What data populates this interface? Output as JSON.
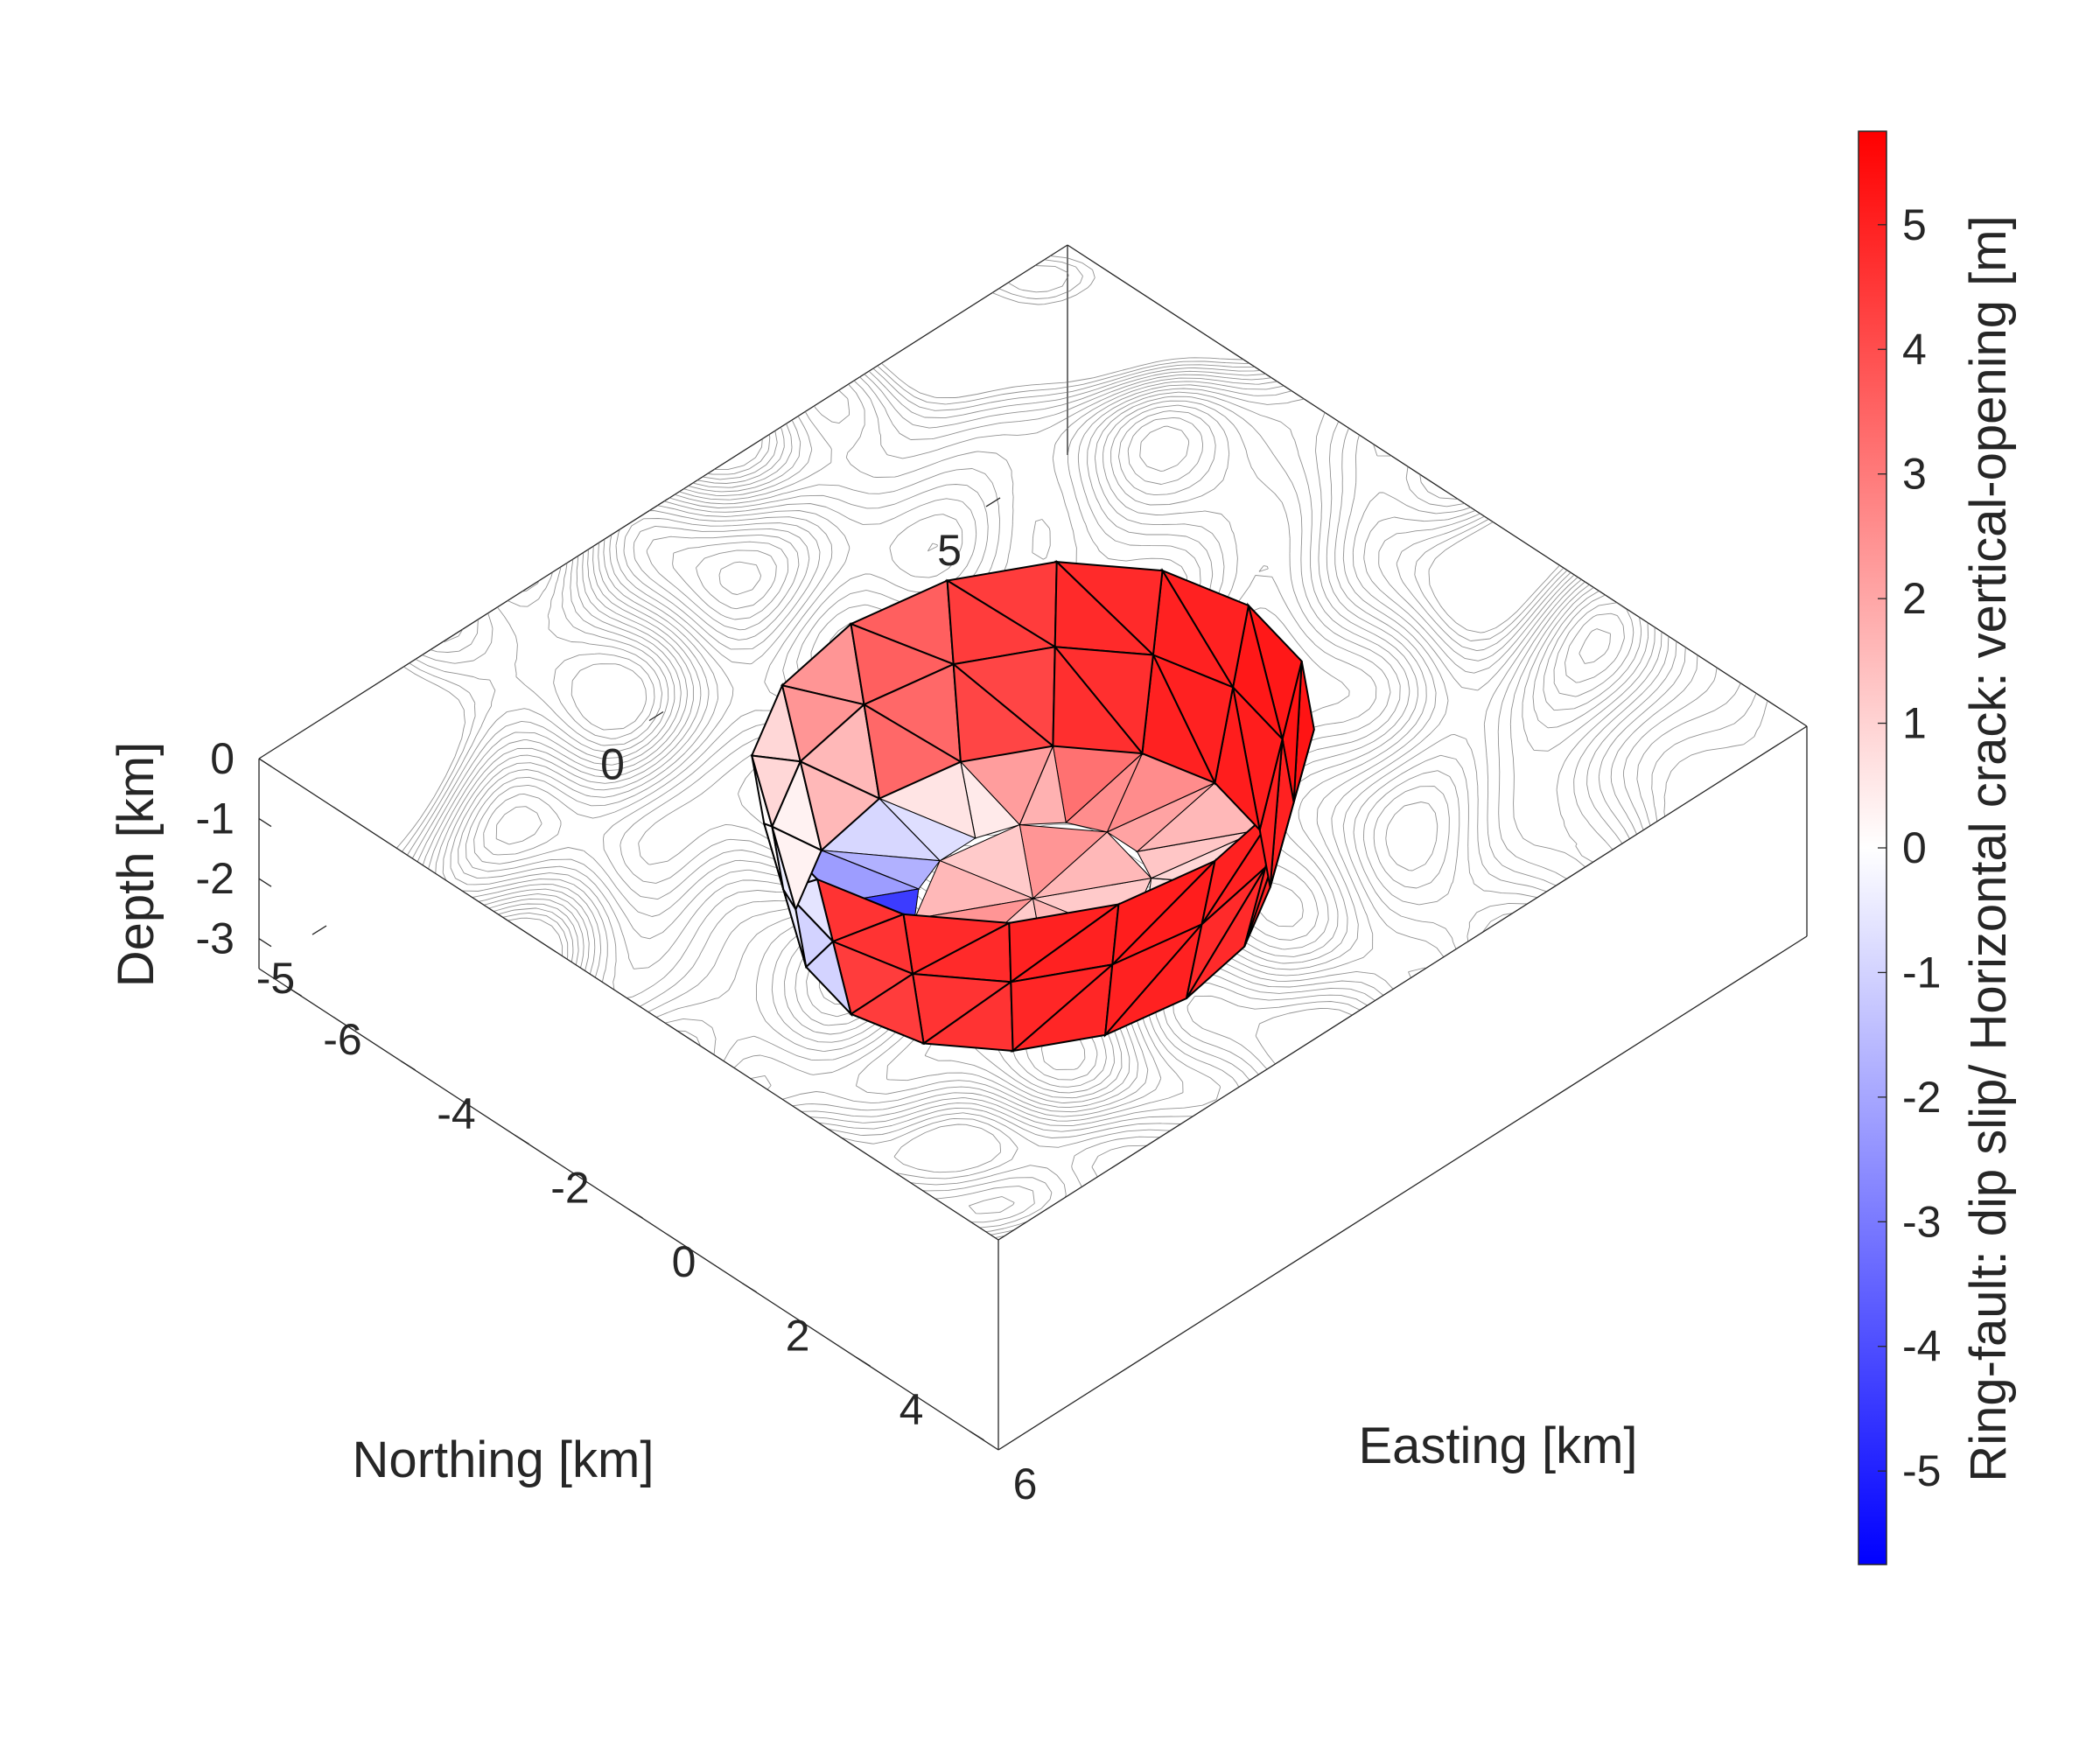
{
  "chart_data": {
    "type": "3d-surface",
    "title": "",
    "xlabel": "Easting [km]",
    "ylabel": "Northing [km]",
    "zlabel": "Depth [km]",
    "colorbar_label": "Ring-fault: dip slip/ Horizontal crack: vertical-opening [m]",
    "xlim": [
      -6.5,
      6.5
    ],
    "ylim": [
      -6,
      6
    ],
    "zlim": [
      -3.5,
      0
    ],
    "x_ticks": [
      -6,
      -4,
      -2,
      0,
      2,
      4,
      6
    ],
    "x_tick_labels": [
      "-6",
      "-4",
      "-2",
      "0",
      "2",
      "4",
      "6"
    ],
    "y_ticks": [
      -5,
      0,
      5
    ],
    "y_tick_labels": [
      "-5",
      "0",
      "5"
    ],
    "z_ticks": [
      0,
      -1,
      -2,
      -3
    ],
    "z_tick_labels": [
      "0",
      "-1",
      "-2",
      "-3"
    ],
    "colorbar_ticks": [
      5,
      4,
      3,
      2,
      1,
      0,
      -1,
      -2,
      -3,
      -4,
      -5
    ],
    "colorbar_tick_labels": [
      "5",
      "4",
      "3",
      "2",
      "1",
      "0",
      "-1",
      "-2",
      "-3",
      "-4",
      "-5"
    ],
    "color_range": [
      -5.75,
      5.75
    ],
    "colormap": {
      "low": "#0000ff",
      "mid": "#ffffff",
      "high": "#ff0000"
    },
    "grid": false,
    "ring_fault": {
      "center": [
        0,
        0
      ],
      "radius_top_km": 3.2,
      "radius_bottom_km": 2.7,
      "depth_top_km": 0,
      "depth_mid_km": -1.2,
      "depth_bottom_km": -2.6,
      "segments": 16,
      "dip_slip_m_upper": [
        5.0,
        5.1,
        5.3,
        5.2,
        5.0,
        4.8,
        4.4,
        3.6,
        2.4,
        0.9,
        0.1,
        -0.6,
        4.6,
        4.8,
        5.0,
        5.1
      ],
      "dip_slip_m_lower": [
        4.8,
        4.9,
        5.0,
        5.1,
        5.0,
        4.7,
        4.2,
        3.4,
        1.6,
        0.3,
        -0.4,
        -1.0,
        4.4,
        4.6,
        4.9,
        5.0
      ]
    },
    "horizontal_crack": {
      "depth_km": -2.6,
      "radius_km": 2.7,
      "opening_m_inner": [
        1.2,
        1.6,
        2.4
      ],
      "opening_m_outer": [
        1.0,
        0.6,
        0.9,
        1.6,
        2.6,
        3.2,
        2.2,
        0.6,
        -0.9,
        -2.2,
        -5.5,
        -5.1,
        -2.4,
        -0.3,
        0.7,
        0.8
      ]
    }
  }
}
